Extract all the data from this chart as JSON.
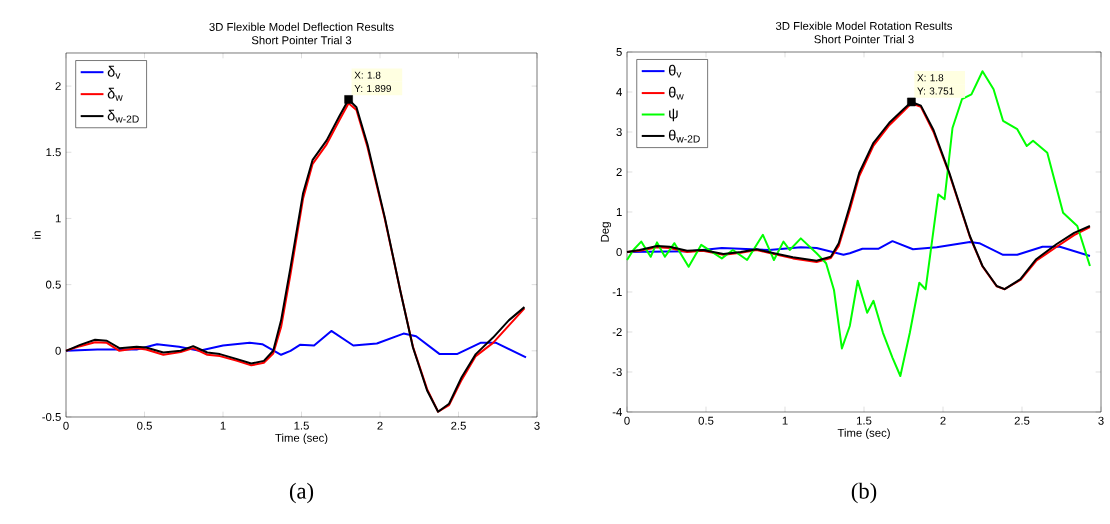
{
  "chart_data": [
    {
      "type": "line",
      "title": "3D Flexible Model Deflection Results",
      "subtitle": "Short Pointer Trial 3",
      "xlabel": "Time (sec)",
      "ylabel": "in",
      "xlim": [
        0,
        3
      ],
      "xticks": [
        0,
        0.5,
        1,
        1.5,
        2,
        2.5,
        3
      ],
      "ylim": [
        -0.5,
        2.25
      ],
      "yticks": [
        -0.5,
        0,
        0.5,
        1,
        1.5,
        2
      ],
      "grid": false,
      "legend": "top left",
      "series": [
        {
          "name": "δ$_{v}$",
          "color": "#0000ff",
          "x": [
            0,
            0.2,
            0.45,
            0.58,
            0.72,
            0.85,
            1.0,
            1.17,
            1.25,
            1.37,
            1.43,
            1.49,
            1.58,
            1.69,
            1.83,
            1.98,
            2.15,
            2.23,
            2.38,
            2.49,
            2.64,
            2.74,
            2.93
          ],
          "values": [
            0,
            0.01,
            0.01,
            0.05,
            0.03,
            0,
            0.04,
            0.06,
            0.05,
            -0.03,
            0,
            0.045,
            0.04,
            0.15,
            0.04,
            0.055,
            0.13,
            0.11,
            -0.025,
            -0.025,
            0.06,
            0.06,
            -0.05
          ]
        },
        {
          "name": "δ$_{w}$",
          "color": "#ff0000",
          "x": [
            0,
            0.09,
            0.185,
            0.26,
            0.34,
            0.45,
            0.51,
            0.62,
            0.73,
            0.81,
            0.9,
            0.98,
            1.09,
            1.18,
            1.26,
            1.32,
            1.37,
            1.43,
            1.51,
            1.57,
            1.66,
            1.74,
            1.8,
            1.85,
            1.92,
            2.03,
            2.13,
            2.21,
            2.3,
            2.37,
            2.44,
            2.52,
            2.61,
            2.72,
            2.82,
            2.92
          ],
          "values": [
            0,
            0.035,
            0.065,
            0.06,
            0,
            0.02,
            0.01,
            -0.03,
            -0.01,
            0.02,
            -0.03,
            -0.04,
            -0.075,
            -0.11,
            -0.09,
            -0.02,
            0.18,
            0.58,
            1.15,
            1.41,
            1.56,
            1.74,
            1.87,
            1.82,
            1.54,
            1.0,
            0.45,
            0.03,
            -0.29,
            -0.46,
            -0.41,
            -0.22,
            -0.04,
            0.06,
            0.19,
            0.32
          ]
        },
        {
          "name": "δ$_{w-2D}$",
          "color": "#000000",
          "x": [
            0,
            0.09,
            0.185,
            0.26,
            0.34,
            0.45,
            0.51,
            0.62,
            0.73,
            0.81,
            0.9,
            0.98,
            1.09,
            1.18,
            1.26,
            1.32,
            1.37,
            1.43,
            1.51,
            1.57,
            1.66,
            1.74,
            1.8,
            1.85,
            1.92,
            2.03,
            2.13,
            2.21,
            2.3,
            2.37,
            2.44,
            2.52,
            2.61,
            2.72,
            2.82,
            2.92
          ],
          "values": [
            0,
            0.045,
            0.083,
            0.076,
            0.02,
            0.03,
            0.025,
            -0.013,
            0,
            0.035,
            -0.013,
            -0.025,
            -0.063,
            -0.096,
            -0.076,
            0,
            0.23,
            0.63,
            1.19,
            1.44,
            1.59,
            1.77,
            1.899,
            1.84,
            1.56,
            1.01,
            0.45,
            0.025,
            -0.3,
            -0.46,
            -0.4,
            -0.2,
            -0.025,
            0.1,
            0.23,
            0.33
          ]
        },
        {
          "type": "scatter",
          "marker": "square",
          "color": "#000000",
          "x": [
            1.8
          ],
          "values": [
            1.899
          ]
        }
      ],
      "annotations": [
        "X: 1.8",
        "Y: 1.899",
        "(a)"
      ]
    },
    {
      "type": "line",
      "title": "3D Flexible Model Rotation Results",
      "subtitle": "Short Pointer Trial 3",
      "xlabel": "Time (sec)",
      "ylabel": "Deg",
      "xlim": [
        0,
        3
      ],
      "xticks": [
        0,
        0.5,
        1,
        1.5,
        2,
        2.5,
        3
      ],
      "ylim": [
        -4,
        5
      ],
      "yticks": [
        -4,
        -3,
        -2,
        -1,
        0,
        1,
        2,
        3,
        4,
        5
      ],
      "grid": false,
      "legend": "top left",
      "series": [
        {
          "name": "θ$_{v}$",
          "color": "#0000ff",
          "x": [
            0,
            0.4,
            0.6,
            0.9,
            1.1,
            1.2,
            1.37,
            1.41,
            1.49,
            1.59,
            1.68,
            1.81,
            1.96,
            2.17,
            2.23,
            2.38,
            2.47,
            2.63,
            2.74,
            2.93
          ],
          "values": [
            0,
            0.02,
            0.1,
            0.05,
            0.12,
            0.1,
            -0.07,
            -0.03,
            0.08,
            0.08,
            0.27,
            0.07,
            0.12,
            0.25,
            0.22,
            -0.07,
            -0.07,
            0.13,
            0.13,
            -0.1
          ]
        },
        {
          "name": "θ$_{w}$",
          "color": "#ff0000",
          "x": [
            0,
            0.08,
            0.19,
            0.27,
            0.38,
            0.48,
            0.61,
            0.72,
            0.82,
            0.93,
            1.05,
            1.2,
            1.29,
            1.34,
            1.41,
            1.47,
            1.56,
            1.66,
            1.75,
            1.8,
            1.86,
            1.94,
            2.04,
            2.17,
            2.25,
            2.34,
            2.39,
            2.49,
            2.59,
            2.72,
            2.83,
            2.93
          ],
          "values": [
            0,
            0.03,
            0.12,
            0.1,
            0,
            0.03,
            -0.07,
            -0.02,
            0.05,
            -0.05,
            -0.16,
            -0.25,
            -0.15,
            0.15,
            1.05,
            1.9,
            2.66,
            3.17,
            3.52,
            3.72,
            3.63,
            3.0,
            1.95,
            0.38,
            -0.36,
            -0.86,
            -0.93,
            -0.7,
            -0.22,
            0.13,
            0.42,
            0.62
          ]
        },
        {
          "name": "ψ",
          "color": "#00ff00",
          "x": [
            0,
            0.04,
            0.09,
            0.15,
            0.19,
            0.24,
            0.3,
            0.39,
            0.47,
            0.6,
            0.67,
            0.76,
            0.86,
            0.93,
            0.99,
            1.03,
            1.1,
            1.2,
            1.26,
            1.31,
            1.36,
            1.41,
            1.46,
            1.52,
            1.56,
            1.62,
            1.68,
            1.73,
            1.79,
            1.85,
            1.89,
            1.97,
            2.01,
            2.06,
            2.12,
            2.18,
            2.25,
            2.32,
            2.38,
            2.47,
            2.53,
            2.57,
            2.66,
            2.76,
            2.85,
            2.93
          ],
          "values": [
            -0.2,
            0.05,
            0.26,
            -0.12,
            0.24,
            -0.12,
            0.22,
            -0.37,
            0.18,
            -0.16,
            0.05,
            -0.2,
            0.43,
            -0.2,
            0.26,
            0.05,
            0.34,
            -0.03,
            -0.28,
            -0.95,
            -2.41,
            -1.85,
            -0.72,
            -1.52,
            -1.22,
            -2.02,
            -2.64,
            -3.1,
            -2.02,
            -0.77,
            -0.93,
            1.44,
            1.32,
            3.1,
            3.82,
            3.94,
            4.52,
            4.07,
            3.28,
            3.07,
            2.65,
            2.78,
            2.48,
            0.98,
            0.65,
            -0.35
          ]
        },
        {
          "name": "θ$_{w-2D}$",
          "color": "#000000",
          "x": [
            0,
            0.08,
            0.19,
            0.27,
            0.38,
            0.48,
            0.61,
            0.72,
            0.82,
            0.93,
            1.05,
            1.2,
            1.29,
            1.34,
            1.41,
            1.47,
            1.56,
            1.66,
            1.75,
            1.8,
            1.86,
            1.94,
            2.04,
            2.17,
            2.25,
            2.34,
            2.39,
            2.49,
            2.59,
            2.72,
            2.83,
            2.93
          ],
          "values": [
            0,
            0.05,
            0.15,
            0.13,
            0.03,
            0.05,
            -0.05,
            0,
            0.07,
            -0.03,
            -0.13,
            -0.22,
            -0.12,
            0.22,
            1.15,
            1.98,
            2.73,
            3.23,
            3.57,
            3.751,
            3.66,
            3.05,
            1.98,
            0.4,
            -0.35,
            -0.85,
            -0.93,
            -0.68,
            -0.18,
            0.2,
            0.48,
            0.65
          ]
        },
        {
          "type": "scatter",
          "marker": "square",
          "color": "#000000",
          "x": [
            1.8
          ],
          "values": [
            3.751
          ]
        }
      ],
      "annotations": [
        "X: 1.8",
        "Y: 3.751",
        "(b)"
      ]
    }
  ]
}
